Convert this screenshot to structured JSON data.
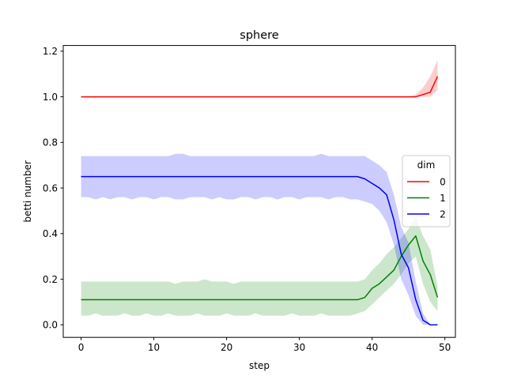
{
  "chart_data": {
    "type": "line",
    "title": "sphere",
    "xlabel": "step",
    "ylabel": "betti number",
    "xlim": [
      -2.45,
      51.45
    ],
    "ylim": [
      -0.055,
      1.225
    ],
    "xticks": [
      0,
      10,
      20,
      30,
      40,
      50
    ],
    "yticks": [
      0.0,
      0.2,
      0.4,
      0.6,
      0.8,
      1.0,
      1.2
    ],
    "xtick_labels": [
      "0",
      "10",
      "20",
      "30",
      "40",
      "50"
    ],
    "ytick_labels": [
      "0.0",
      "0.2",
      "0.4",
      "0.6",
      "0.8",
      "1.0",
      "1.2"
    ],
    "grid": false,
    "legend": {
      "title": "dim",
      "placement": "center-right"
    },
    "x": [
      0,
      1,
      2,
      3,
      4,
      5,
      6,
      7,
      8,
      9,
      10,
      11,
      12,
      13,
      14,
      15,
      16,
      17,
      18,
      19,
      20,
      21,
      22,
      23,
      24,
      25,
      26,
      27,
      28,
      29,
      30,
      31,
      32,
      33,
      34,
      35,
      36,
      37,
      38,
      39,
      40,
      41,
      42,
      43,
      44,
      45,
      46,
      47,
      48,
      49
    ],
    "series": [
      {
        "name": "0",
        "color": "#ff0000",
        "values": [
          1,
          1,
          1,
          1,
          1,
          1,
          1,
          1,
          1,
          1,
          1,
          1,
          1,
          1,
          1,
          1,
          1,
          1,
          1,
          1,
          1,
          1,
          1,
          1,
          1,
          1,
          1,
          1,
          1,
          1,
          1,
          1,
          1,
          1,
          1,
          1,
          1,
          1,
          1,
          1,
          1,
          1,
          1,
          1,
          1,
          1,
          1,
          1.01,
          1.02,
          1.09
        ],
        "lower": [
          1,
          1,
          1,
          1,
          1,
          1,
          1,
          1,
          1,
          1,
          1,
          1,
          1,
          1,
          1,
          1,
          1,
          1,
          1,
          1,
          1,
          1,
          1,
          1,
          1,
          1,
          1,
          1,
          1,
          1,
          1,
          1,
          1,
          1,
          1,
          1,
          1,
          1,
          1,
          1,
          1,
          1,
          1,
          1,
          1,
          1,
          1,
          1,
          1,
          1.03
        ],
        "upper": [
          1,
          1,
          1,
          1,
          1,
          1,
          1,
          1,
          1,
          1,
          1,
          1,
          1,
          1,
          1,
          1,
          1,
          1,
          1,
          1,
          1,
          1,
          1,
          1,
          1,
          1,
          1,
          1,
          1,
          1,
          1,
          1,
          1,
          1,
          1,
          1,
          1,
          1,
          1,
          1,
          1,
          1,
          1,
          1,
          1,
          1,
          1.01,
          1.04,
          1.09,
          1.16
        ]
      },
      {
        "name": "1",
        "color": "#008000",
        "values": [
          0.11,
          0.11,
          0.11,
          0.11,
          0.11,
          0.11,
          0.11,
          0.11,
          0.11,
          0.11,
          0.11,
          0.11,
          0.11,
          0.11,
          0.11,
          0.11,
          0.11,
          0.11,
          0.11,
          0.11,
          0.11,
          0.11,
          0.11,
          0.11,
          0.11,
          0.11,
          0.11,
          0.11,
          0.11,
          0.11,
          0.11,
          0.11,
          0.11,
          0.11,
          0.11,
          0.11,
          0.11,
          0.11,
          0.11,
          0.12,
          0.16,
          0.18,
          0.21,
          0.24,
          0.3,
          0.35,
          0.39,
          0.28,
          0.22,
          0.12
        ],
        "lower": [
          0.04,
          0.04,
          0.05,
          0.04,
          0.04,
          0.04,
          0.05,
          0.04,
          0.04,
          0.05,
          0.04,
          0.04,
          0.05,
          0.04,
          0.04,
          0.04,
          0.05,
          0.04,
          0.04,
          0.04,
          0.05,
          0.04,
          0.04,
          0.04,
          0.05,
          0.04,
          0.04,
          0.04,
          0.04,
          0.05,
          0.04,
          0.04,
          0.04,
          0.05,
          0.04,
          0.04,
          0.04,
          0.04,
          0.05,
          0.06,
          0.09,
          0.12,
          0.15,
          0.18,
          0.22,
          0.27,
          0.3,
          0.18,
          0.1,
          0.06
        ],
        "upper": [
          0.19,
          0.19,
          0.19,
          0.19,
          0.19,
          0.19,
          0.19,
          0.19,
          0.19,
          0.19,
          0.19,
          0.19,
          0.19,
          0.18,
          0.19,
          0.19,
          0.19,
          0.2,
          0.19,
          0.19,
          0.19,
          0.18,
          0.19,
          0.19,
          0.19,
          0.19,
          0.19,
          0.19,
          0.19,
          0.19,
          0.19,
          0.19,
          0.19,
          0.19,
          0.19,
          0.19,
          0.19,
          0.19,
          0.19,
          0.2,
          0.24,
          0.27,
          0.31,
          0.34,
          0.38,
          0.42,
          0.47,
          0.39,
          0.33,
          0.17
        ]
      },
      {
        "name": "2",
        "color": "#0000ff",
        "values": [
          0.65,
          0.65,
          0.65,
          0.65,
          0.65,
          0.65,
          0.65,
          0.65,
          0.65,
          0.65,
          0.65,
          0.65,
          0.65,
          0.65,
          0.65,
          0.65,
          0.65,
          0.65,
          0.65,
          0.65,
          0.65,
          0.65,
          0.65,
          0.65,
          0.65,
          0.65,
          0.65,
          0.65,
          0.65,
          0.65,
          0.65,
          0.65,
          0.65,
          0.65,
          0.65,
          0.65,
          0.65,
          0.65,
          0.65,
          0.64,
          0.62,
          0.6,
          0.57,
          0.46,
          0.31,
          0.25,
          0.11,
          0.02,
          0,
          0
        ],
        "lower": [
          0.56,
          0.56,
          0.55,
          0.56,
          0.55,
          0.56,
          0.56,
          0.55,
          0.56,
          0.56,
          0.55,
          0.56,
          0.56,
          0.55,
          0.55,
          0.56,
          0.56,
          0.56,
          0.55,
          0.56,
          0.55,
          0.55,
          0.56,
          0.56,
          0.55,
          0.56,
          0.56,
          0.55,
          0.56,
          0.56,
          0.55,
          0.56,
          0.56,
          0.56,
          0.55,
          0.56,
          0.56,
          0.55,
          0.55,
          0.54,
          0.53,
          0.5,
          0.45,
          0.35,
          0.2,
          0.13,
          0.04,
          0,
          0,
          0
        ],
        "upper": [
          0.74,
          0.74,
          0.74,
          0.74,
          0.74,
          0.74,
          0.74,
          0.74,
          0.74,
          0.74,
          0.74,
          0.74,
          0.74,
          0.75,
          0.75,
          0.74,
          0.74,
          0.74,
          0.74,
          0.74,
          0.74,
          0.74,
          0.74,
          0.74,
          0.74,
          0.74,
          0.74,
          0.74,
          0.74,
          0.74,
          0.74,
          0.74,
          0.74,
          0.75,
          0.74,
          0.74,
          0.74,
          0.74,
          0.74,
          0.74,
          0.72,
          0.7,
          0.67,
          0.57,
          0.43,
          0.36,
          0.19,
          0.05,
          0,
          0
        ]
      }
    ]
  }
}
